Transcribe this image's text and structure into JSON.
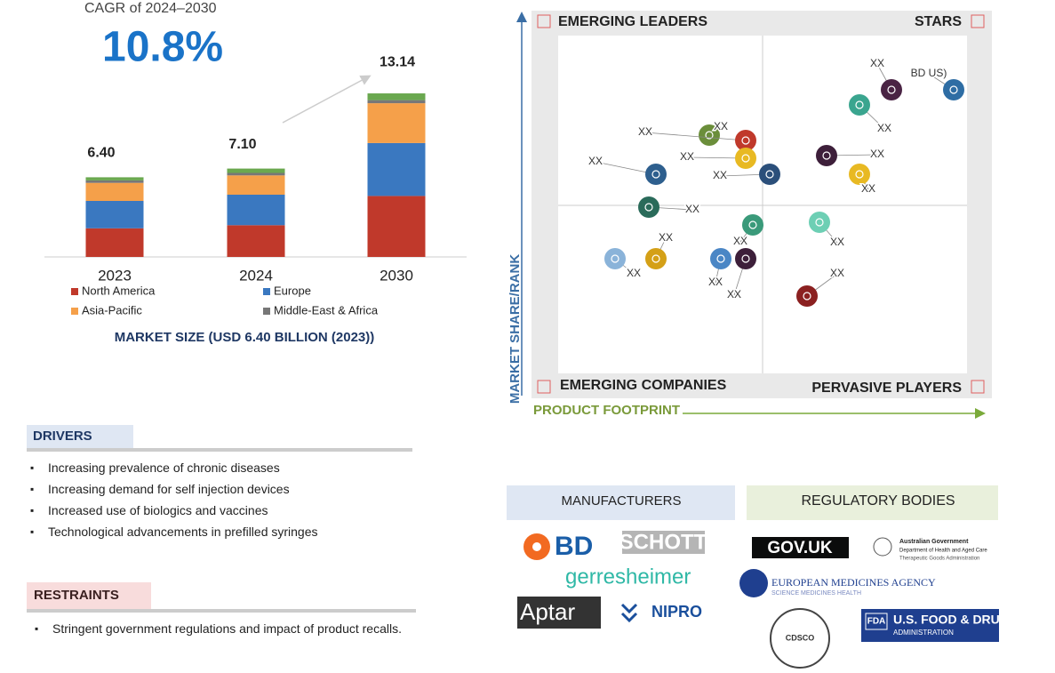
{
  "cagr": {
    "label": "CAGR of 2024–2030",
    "value": "10.8%"
  },
  "chart_data": {
    "type": "bar",
    "stacked": true,
    "categories": [
      "2023",
      "2024",
      "2030"
    ],
    "series": [
      {
        "name": "North America",
        "color": "#c0392b",
        "values": [
          2.3,
          2.55,
          4.9
        ]
      },
      {
        "name": "Europe",
        "color": "#3a78c0",
        "values": [
          2.2,
          2.45,
          4.25
        ]
      },
      {
        "name": "Asia-Pacific",
        "color": "#f5a04a",
        "values": [
          1.45,
          1.55,
          3.2
        ]
      },
      {
        "name": "Middle-East & Africa",
        "color": "#777777",
        "values": [
          0.2,
          0.2,
          0.25
        ]
      },
      {
        "name": null,
        "color": "#6aa84f",
        "values": [
          0.25,
          0.35,
          0.54
        ]
      }
    ],
    "totals": {
      "values": [
        6.4,
        7.1,
        13.14
      ],
      "value_labels": [
        "6.40",
        "7.10",
        "13.14"
      ]
    },
    "ylim": [
      0,
      14
    ],
    "footnote": "MARKET SIZE (USD 6.40 BILLION (2023))"
  },
  "quadrant": {
    "labels": {
      "top_left": "EMERGING LEADERS",
      "top_right": "STARS",
      "bottom_left": "EMERGING COMPANIES",
      "bottom_right": "PERVASIVE PLAYERS"
    },
    "y_axis": "MARKET SHARE/RANK",
    "x_axis": "PRODUCT FOOTPRINT",
    "companies": [
      {
        "label": "XX",
        "color": "#4a2444"
      },
      {
        "label": "BD US)",
        "color": "#2e6da4"
      },
      {
        "label": "XX",
        "color": "#3aa58f"
      },
      {
        "label": "XX",
        "color": "#6b8e3a"
      },
      {
        "label": "XX",
        "color": "#c0392b"
      },
      {
        "label": "XX",
        "color": "#e8b923"
      },
      {
        "label": "XX",
        "color": "#3d1f3a"
      },
      {
        "label": "XX",
        "color": "#e8b923"
      },
      {
        "label": "XX",
        "color": "#2e5f8e"
      },
      {
        "label": "XX",
        "color": "#2b4f7a"
      },
      {
        "label": "XX",
        "color": "#2a6b5a"
      },
      {
        "label": "XX",
        "color": "#3a9a7a"
      },
      {
        "label": "XX",
        "color": "#6dcfb4"
      },
      {
        "label": "XX",
        "color": "#8ab3d9"
      },
      {
        "label": "XX",
        "color": "#d4a017"
      },
      {
        "label": "XX",
        "color": "#4a86c5"
      },
      {
        "label": "XX",
        "color": "#3d1f3a"
      },
      {
        "label": "XX",
        "color": "#8b2020"
      }
    ]
  },
  "drivers": {
    "title": "DRIVERS",
    "items": [
      "Increasing prevalence of chronic diseases",
      "Increasing demand for self injection devices",
      "Increased use of biologics and vaccines",
      "Technological advancements in prefilled syringes"
    ]
  },
  "restraints": {
    "title": "RESTRAINTS",
    "items": [
      "Stringent government regulations and impact of product recalls."
    ]
  },
  "manufacturers": {
    "title": "MANUFACTURERS",
    "logos": [
      "BD",
      "SCHOTT",
      "gerresheimer",
      "Aptar",
      "NIPRO"
    ]
  },
  "regulatory_bodies": {
    "title": "REGULATORY BODIES",
    "gov_uk": "GOV.UK",
    "australia": [
      "Australian Government",
      "Department of Health and Aged Care",
      "Therapeutic Goods Administration"
    ],
    "ema": [
      "EUROPEAN MEDICINES AGENCY",
      "SCIENCE MEDICINES HEALTH"
    ],
    "cdsco": "CDSCO",
    "fda": [
      "FDA",
      "U.S. FOOD & DRUG",
      "ADMINISTRATION"
    ]
  }
}
